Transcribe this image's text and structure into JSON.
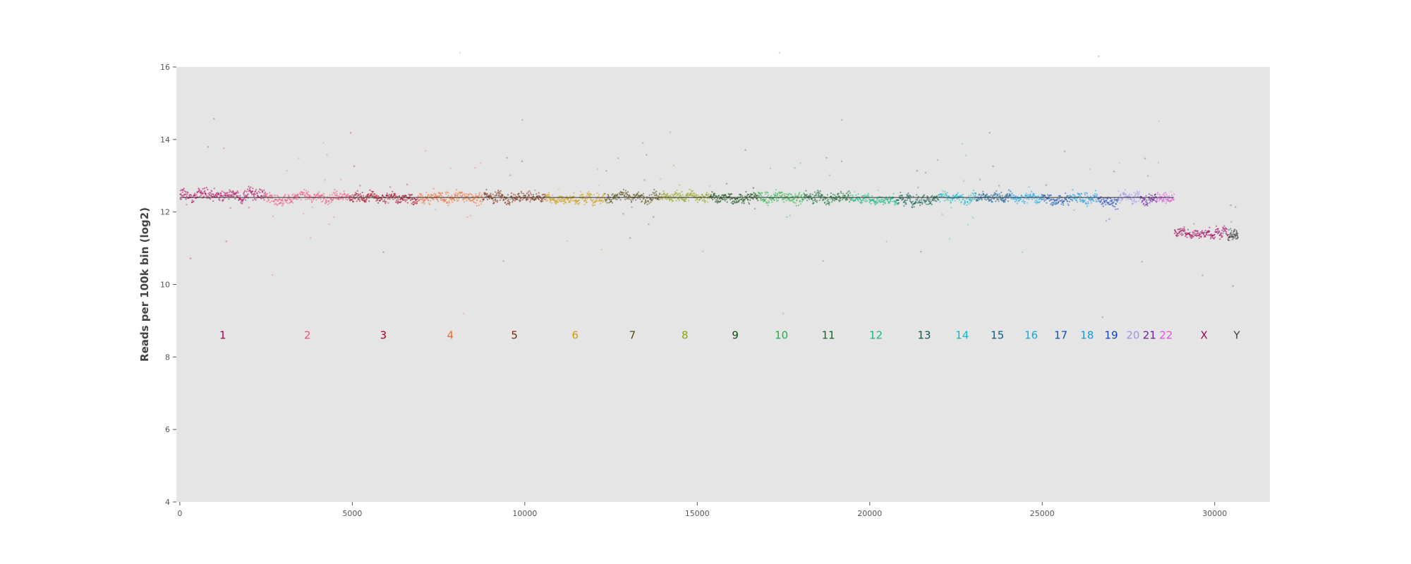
{
  "chart_data": {
    "type": "scatter",
    "title": "",
    "xlabel": "",
    "ylabel": "Reads per 100k bin (log2)",
    "xlim": [
      -100,
      31600
    ],
    "ylim": [
      4,
      16
    ],
    "xticks": [
      0,
      5000,
      10000,
      15000,
      20000,
      25000,
      30000
    ],
    "yticks": [
      4,
      6,
      8,
      10,
      12,
      14,
      16
    ],
    "grid": false,
    "background": "#e5e5e5",
    "label_y": 8.6,
    "baseline": {
      "start": 0,
      "end": 28800,
      "value": 12.4,
      "color": "#333333"
    },
    "chromosomes": [
      {
        "name": "1",
        "start": 0,
        "end": 2490,
        "median": 12.45,
        "label_x": 1245,
        "color": "#b0005a"
      },
      {
        "name": "2",
        "start": 2490,
        "end": 4910,
        "median": 12.4,
        "label_x": 3700,
        "color": "#f0527a"
      },
      {
        "name": "3",
        "start": 4910,
        "end": 6890,
        "median": 12.4,
        "label_x": 5900,
        "color": "#a8001e"
      },
      {
        "name": "4",
        "start": 6890,
        "end": 8790,
        "median": 12.4,
        "label_x": 7840,
        "color": "#f06a30"
      },
      {
        "name": "5",
        "start": 8790,
        "end": 10600,
        "median": 12.42,
        "label_x": 9700,
        "color": "#7a2a0a"
      },
      {
        "name": "6",
        "start": 10600,
        "end": 12320,
        "median": 12.4,
        "label_x": 11460,
        "color": "#d09a10"
      },
      {
        "name": "7",
        "start": 12320,
        "end": 13920,
        "median": 12.4,
        "label_x": 13120,
        "color": "#5a4a10"
      },
      {
        "name": "8",
        "start": 13920,
        "end": 15370,
        "median": 12.42,
        "label_x": 14640,
        "color": "#90a010"
      },
      {
        "name": "9",
        "start": 15370,
        "end": 16760,
        "median": 12.42,
        "label_x": 16100,
        "color": "#0a4a0a"
      },
      {
        "name": "10",
        "start": 16760,
        "end": 18100,
        "median": 12.4,
        "label_x": 17440,
        "color": "#20b040"
      },
      {
        "name": "11",
        "start": 18100,
        "end": 19450,
        "median": 12.42,
        "label_x": 18800,
        "color": "#0a6a2a"
      },
      {
        "name": "12",
        "start": 19450,
        "end": 20780,
        "median": 12.38,
        "label_x": 20180,
        "color": "#10b880"
      },
      {
        "name": "13",
        "start": 20780,
        "end": 22000,
        "median": 12.35,
        "label_x": 21580,
        "color": "#0a5a50"
      },
      {
        "name": "14",
        "start": 22000,
        "end": 23070,
        "median": 12.38,
        "label_x": 22680,
        "color": "#10b8c8"
      },
      {
        "name": "15",
        "start": 23070,
        "end": 24090,
        "median": 12.4,
        "label_x": 23700,
        "color": "#0a5a8a"
      },
      {
        "name": "16",
        "start": 24090,
        "end": 24990,
        "median": 12.4,
        "label_x": 24680,
        "color": "#10a8e8"
      },
      {
        "name": "17",
        "start": 24990,
        "end": 25820,
        "median": 12.38,
        "label_x": 25540,
        "color": "#1050b0"
      },
      {
        "name": "18",
        "start": 25820,
        "end": 26620,
        "median": 12.38,
        "label_x": 26300,
        "color": "#1898e0"
      },
      {
        "name": "19",
        "start": 26620,
        "end": 27210,
        "median": 12.3,
        "label_x": 27000,
        "color": "#1040b8"
      },
      {
        "name": "20",
        "start": 27210,
        "end": 27850,
        "median": 12.4,
        "label_x": 27630,
        "color": "#a090f0"
      },
      {
        "name": "21",
        "start": 27850,
        "end": 28320,
        "median": 12.4,
        "label_x": 28110,
        "color": "#6a1aa0"
      },
      {
        "name": "22",
        "start": 28320,
        "end": 28830,
        "median": 12.38,
        "label_x": 28590,
        "color": "#e050e0"
      },
      {
        "name": "X",
        "start": 28830,
        "end": 30390,
        "median": 11.45,
        "label_x": 29690,
        "color": "#a0005a"
      },
      {
        "name": "Y",
        "start": 30390,
        "end": 30680,
        "median": 11.4,
        "label_x": 30640,
        "color": "#404040"
      }
    ]
  }
}
